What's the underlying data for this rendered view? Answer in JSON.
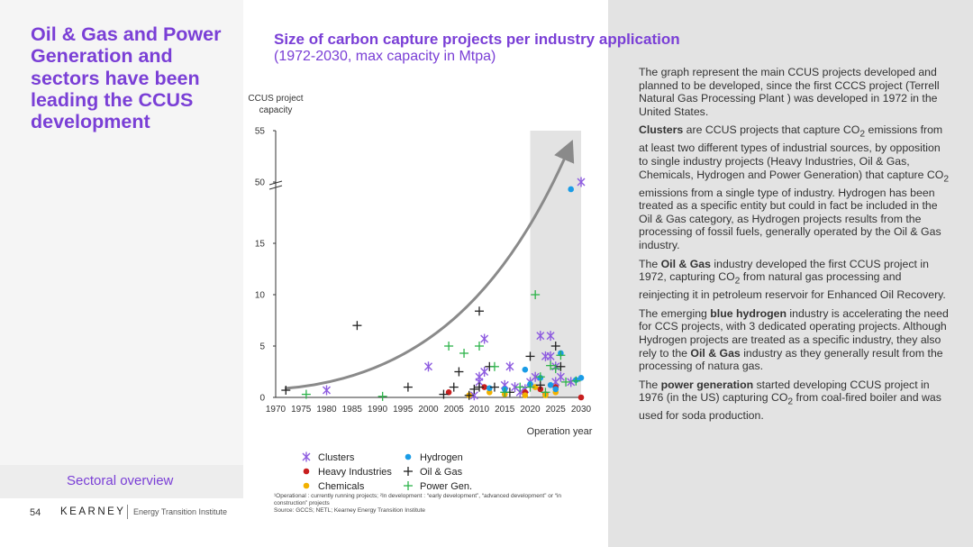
{
  "left": {
    "title": "Oil & Gas and Power Generation and sectors have been leading the CCUS development",
    "section": "Sectoral overview",
    "page_number": "54",
    "brand": "KEARNEY",
    "brand_sub": "Energy Transition Institute"
  },
  "colors": {
    "accent": "#7a3fd6",
    "clusters": "#8e5ce0",
    "heavy": "#c81e1e",
    "chemicals": "#f2b100",
    "hydrogen": "#1a9ce6",
    "oilgas": "#222222",
    "power": "#2db34a",
    "shade": "#e3e3e3"
  },
  "chart_data": {
    "type": "scatter",
    "title": "Size of carbon capture projects per industry application",
    "subtitle": "(1972-2030, max capacity in Mtpa)",
    "ylabel_line1": "CCUS project",
    "ylabel_line2": "capacity",
    "xlabel": "Operation year",
    "xlim": [
      1970,
      2030
    ],
    "x_ticks": [
      "1970",
      "1975",
      "1980",
      "1985",
      "1990",
      "1995",
      "2000",
      "2005",
      "2010",
      "2015",
      "2020",
      "2025",
      "2030"
    ],
    "y_ticks": [
      "0",
      "5",
      "10",
      "15",
      "50",
      "55"
    ],
    "y_axis_break": "between 15 and 50",
    "shaded_range": [
      2020,
      2030
    ],
    "trend_arrow": "exponential growth",
    "legend_position": "bottom",
    "legend": [
      {
        "label": "Clusters",
        "series": "clusters"
      },
      {
        "label": "Hydrogen",
        "series": "hydrogen"
      },
      {
        "label": "Heavy Industries",
        "series": "heavy"
      },
      {
        "label": "Oil & Gas",
        "series": "oilgas"
      },
      {
        "label": "Chemicals",
        "series": "chemicals"
      },
      {
        "label": "Power Gen.",
        "series": "power"
      }
    ],
    "series": [
      {
        "name": "Clusters",
        "key": "clusters",
        "marker": "asterisk",
        "points": [
          [
            1980,
            0.7
          ],
          [
            2000,
            3
          ],
          [
            2009,
            0.2
          ],
          [
            2010,
            1.5
          ],
          [
            2010,
            2
          ],
          [
            2011,
            5.7
          ],
          [
            2011,
            2.5
          ],
          [
            2015,
            1.2
          ],
          [
            2016,
            3
          ],
          [
            2017,
            1
          ],
          [
            2018,
            0.5
          ],
          [
            2019,
            0.8
          ],
          [
            2020,
            1.5
          ],
          [
            2021,
            2
          ],
          [
            2022,
            6
          ],
          [
            2023,
            4
          ],
          [
            2024,
            4
          ],
          [
            2024,
            6
          ],
          [
            2025,
            3
          ],
          [
            2025,
            1.5
          ],
          [
            2026,
            2
          ],
          [
            2028,
            1.5
          ],
          [
            2030,
            50
          ]
        ]
      },
      {
        "name": "Heavy Industries",
        "key": "heavy",
        "marker": "circle",
        "points": [
          [
            2004,
            0.5
          ],
          [
            2011,
            1
          ],
          [
            2019,
            0.5
          ],
          [
            2022,
            0.8
          ],
          [
            2023,
            0.3
          ],
          [
            2025,
            1
          ],
          [
            2030,
            0
          ]
        ]
      },
      {
        "name": "Chemicals",
        "key": "chemicals",
        "marker": "circle",
        "points": [
          [
            2008,
            0.2
          ],
          [
            2012,
            0.5
          ],
          [
            2015,
            0.3
          ],
          [
            2019,
            0.2
          ],
          [
            2021,
            1
          ],
          [
            2023,
            0.2
          ],
          [
            2025,
            0.5
          ]
        ]
      },
      {
        "name": "Hydrogen",
        "key": "hydrogen",
        "marker": "circle",
        "points": [
          [
            2012,
            0.9
          ],
          [
            2015,
            0.8
          ],
          [
            2019,
            2.7
          ],
          [
            2020,
            1.3
          ],
          [
            2022,
            1.9
          ],
          [
            2024,
            1.2
          ],
          [
            2025,
            0.8
          ],
          [
            2026,
            4.3
          ],
          [
            2028,
            49.3
          ],
          [
            2029,
            1.7
          ],
          [
            2030,
            1.9
          ]
        ]
      },
      {
        "name": "Oil & Gas",
        "key": "oilgas",
        "marker": "plus",
        "points": [
          [
            1972,
            0.7
          ],
          [
            1986,
            7
          ],
          [
            1996,
            1
          ],
          [
            2003,
            0.3
          ],
          [
            2005,
            1
          ],
          [
            2006,
            2.5
          ],
          [
            2008,
            0.2
          ],
          [
            2009,
            0.8
          ],
          [
            2010,
            8.4
          ],
          [
            2010,
            1
          ],
          [
            2012,
            3
          ],
          [
            2013,
            1
          ],
          [
            2016,
            0.5
          ],
          [
            2020,
            4
          ],
          [
            2022,
            1.2
          ],
          [
            2025,
            5
          ],
          [
            2026,
            3
          ]
        ]
      },
      {
        "name": "Power Gen.",
        "key": "power",
        "marker": "plus",
        "points": [
          [
            1976,
            0.3
          ],
          [
            1991,
            0.1
          ],
          [
            2004,
            5
          ],
          [
            2007,
            4.3
          ],
          [
            2010,
            5
          ],
          [
            2013,
            3
          ],
          [
            2015,
            0.5
          ],
          [
            2018,
            1
          ],
          [
            2020,
            1
          ],
          [
            2021,
            10
          ],
          [
            2022,
            2
          ],
          [
            2023,
            0.5
          ],
          [
            2024,
            3.1
          ],
          [
            2025,
            2.8
          ],
          [
            2026,
            4.1
          ],
          [
            2027,
            1.5
          ],
          [
            2029,
            1.6
          ]
        ]
      }
    ]
  },
  "text": {
    "p1": "The graph represent the main CCUS projects developed and planned to be developed, since the first CCCS project (Terrell Natural Gas Processing Plant ) was developed in 1972 in the United States.",
    "p2_bold": "Clusters",
    "p2a": " are CCUS projects that capture CO",
    "p2_sub1": "2",
    "p2b": " emissions from at least two different types of industrial sources, by opposition to single industry projects (Heavy Industries, Oil & Gas, Chemicals, Hydrogen and Power Generation) that capture CO",
    "p2_sub2": "2",
    "p2c": " emissions from a single type of industry. Hydrogen has been treated as a specific entity but could in fact be included in the Oil & Gas category, as Hydrogen projects results from the processing of fossil fuels, generally operated by the Oil & Gas industry.",
    "p3a": "The ",
    "p3_bold": "Oil & Gas",
    "p3b": " industry developed the first CCUS project in 1972, capturing CO",
    "p3_sub": "2",
    "p3c": " from natural gas processing and reinjecting it in petroleum reservoir for Enhanced Oil Recovery.",
    "p4a": "The emerging ",
    "p4_bold": "blue hydrogen",
    "p4b": " industry is accelerating the need for CCS projects, with 3 dedicated operating projects. Although Hydrogen projects are treated as a specific industry, they also rely to the ",
    "p4_bold2": "Oil & Gas",
    "p4c": " industry as they generally result from the processing of natura gas.",
    "p5a": "The ",
    "p5_bold": "power generation",
    "p5b": " started developing CCUS project in 1976 (in the US) capturing CO",
    "p5_sub": "2",
    "p5c": " from coal-fired boiler and was used for soda production."
  },
  "footnote": {
    "line1": "¹Operational : currently running projects; ²In development : “early development”, “advanced development” or “in construction” projects",
    "line2": "Source: GCCS; NETL; Kearney Energy Transition Institute"
  }
}
